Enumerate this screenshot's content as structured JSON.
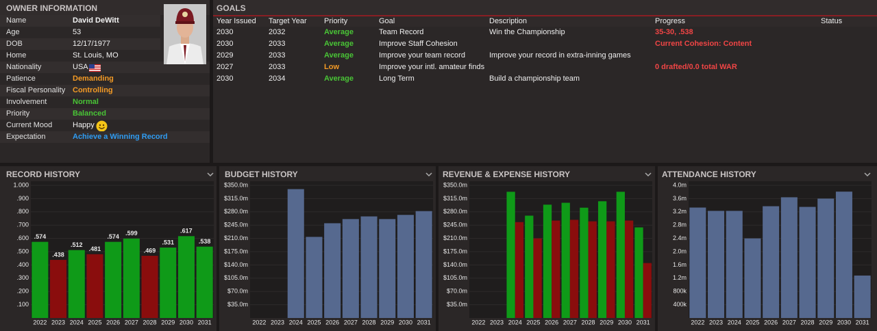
{
  "owner": {
    "title": "OWNER INFORMATION",
    "rows": [
      {
        "label": "Name",
        "value": "David DeWitt"
      },
      {
        "label": "Age",
        "value": 53
      },
      {
        "label": "DOB",
        "value": "12/17/1977"
      },
      {
        "label": "Home",
        "value": "St. Louis, MO"
      },
      {
        "label": "Nationality",
        "value": "USA"
      },
      {
        "label": "Patience",
        "value": "Demanding"
      },
      {
        "label": "Fiscal Personality",
        "value": "Controlling"
      },
      {
        "label": "Involvement",
        "value": "Normal"
      },
      {
        "label": "Priority",
        "value": "Balanced"
      },
      {
        "label": "Current Mood",
        "value": "Happy"
      },
      {
        "label": "Expectation",
        "value": "Achieve a Winning Record"
      }
    ]
  },
  "goals": {
    "title": "GOALS",
    "columns": [
      "Year Issued",
      "Target Year",
      "Priority",
      "Goal",
      "Description",
      "Progress",
      "Status"
    ],
    "rows": [
      {
        "year_issued": 2030,
        "target_year": 2032,
        "priority": "Average",
        "goal": "Team Record",
        "description": "Win the Championship",
        "progress": "35-30, .538"
      },
      {
        "year_issued": 2030,
        "target_year": 2033,
        "priority": "Average",
        "goal": "Improve Staff Cohesion",
        "progress": "Current Cohesion: Content"
      },
      {
        "year_issued": 2029,
        "target_year": 2033,
        "priority": "Average",
        "goal": "Improve your team record",
        "description": "Improve your record in extra-inning games"
      },
      {
        "year_issued": 2027,
        "target_year": 2033,
        "priority": "Low",
        "goal": "Improve your intl. amateur finds",
        "progress": "0 drafted/0.0 total WAR"
      },
      {
        "year_issued": 2030,
        "target_year": 2034,
        "priority": "Average",
        "goal": "Long Term",
        "description": "Build a championship team"
      }
    ]
  },
  "chart_data": [
    {
      "type": "bar",
      "title": "RECORD HISTORY",
      "categories": [
        "2022",
        "2023",
        "2024",
        "2025",
        "2026",
        "2027",
        "2028",
        "2029",
        "2030",
        "2031"
      ],
      "values": [
        0.574,
        0.438,
        0.512,
        0.481,
        0.574,
        0.599,
        0.469,
        0.531,
        0.617,
        0.538
      ],
      "value_labels": [
        ".574",
        ".438",
        ".512",
        ".481",
        ".574",
        ".599",
        ".469",
        ".531",
        ".617",
        ".538"
      ],
      "colors": [
        "#0f9a18",
        "#8a0d0d",
        "#0f9a18",
        "#8a0d0d",
        "#0f9a18",
        "#0f9a18",
        "#8a0d0d",
        "#0f9a18",
        "#0f9a18",
        "#0f9a18"
      ],
      "ylim": [
        0,
        1.0
      ],
      "yticks": [
        {
          "value": 0.1,
          "label": ".100"
        },
        {
          "value": 0.2,
          "label": ".200"
        },
        {
          "value": 0.3,
          "label": ".300"
        },
        {
          "value": 0.4,
          "label": ".400"
        },
        {
          "value": 0.5,
          "label": ".500"
        },
        {
          "value": 0.6,
          "label": ".600"
        },
        {
          "value": 0.7,
          "label": ".700"
        },
        {
          "value": 0.8,
          "label": ".800"
        },
        {
          "value": 0.9,
          "label": ".900"
        },
        {
          "value": 1.0,
          "label": "1.000"
        }
      ],
      "grid": true
    },
    {
      "type": "bar",
      "title": "BUDGET HISTORY",
      "categories": [
        "2022",
        "2023",
        "2024",
        "2025",
        "2026",
        "2027",
        "2028",
        "2029",
        "2030",
        "2031"
      ],
      "values": [
        null,
        null,
        340,
        214,
        250,
        261,
        268,
        261,
        272,
        282
      ],
      "color": "#56698f",
      "ylim": [
        0,
        350
      ],
      "yticks": [
        {
          "value": 35,
          "label": "$35.0m"
        },
        {
          "value": 70,
          "label": "$70.0m"
        },
        {
          "value": 105,
          "label": "$105.0m"
        },
        {
          "value": 140,
          "label": "$140.0m"
        },
        {
          "value": 175,
          "label": "$175.0m"
        },
        {
          "value": 210,
          "label": "$210.0m"
        },
        {
          "value": 245,
          "label": "$245.0m"
        },
        {
          "value": 280,
          "label": "$280.0m"
        },
        {
          "value": 315,
          "label": "$315.0m"
        },
        {
          "value": 350,
          "label": "$350.0m"
        }
      ],
      "grid": true
    },
    {
      "type": "bar",
      "title": "REVENUE & EXPENSE HISTORY",
      "categories": [
        "2022",
        "2023",
        "2024",
        "2025",
        "2026",
        "2027",
        "2028",
        "2029",
        "2030",
        "2031"
      ],
      "series": [
        {
          "color": "#0f9a18",
          "values": [
            null,
            null,
            333,
            270,
            299,
            304,
            291,
            308,
            333,
            239
          ]
        },
        {
          "color": "#8a0d0d",
          "values": [
            null,
            null,
            253,
            210,
            257,
            259,
            255,
            255,
            257,
            145
          ]
        }
      ],
      "ylim": [
        0,
        350
      ],
      "yticks": [
        {
          "value": 35,
          "label": "$35.0m"
        },
        {
          "value": 70,
          "label": "$70.0m"
        },
        {
          "value": 105,
          "label": "$105.0m"
        },
        {
          "value": 140,
          "label": "$140.0m"
        },
        {
          "value": 175,
          "label": "$175.0m"
        },
        {
          "value": 210,
          "label": "$210.0m"
        },
        {
          "value": 245,
          "label": "$245.0m"
        },
        {
          "value": 280,
          "label": "$280.0m"
        },
        {
          "value": 315,
          "label": "$315.0m"
        },
        {
          "value": 350,
          "label": "$350.0m"
        }
      ],
      "grid": true
    },
    {
      "type": "bar",
      "title": "ATTENDANCE HISTORY",
      "categories": [
        "2022",
        "2023",
        "2024",
        "2025",
        "2026",
        "2027",
        "2028",
        "2029",
        "2030",
        "2031"
      ],
      "values": [
        3330000,
        3230000,
        3230000,
        2400000,
        3370000,
        3640000,
        3350000,
        3600000,
        3810000,
        1280000
      ],
      "color": "#56698f",
      "ylim": [
        0,
        4000000
      ],
      "yticks": [
        {
          "value": 400000,
          "label": "400k"
        },
        {
          "value": 800000,
          "label": "800k"
        },
        {
          "value": 1200000,
          "label": "1.2m"
        },
        {
          "value": 1600000,
          "label": "1.6m"
        },
        {
          "value": 2000000,
          "label": "2.0m"
        },
        {
          "value": 2400000,
          "label": "2.4m"
        },
        {
          "value": 2800000,
          "label": "2.8m"
        },
        {
          "value": 3200000,
          "label": "3.2m"
        },
        {
          "value": 3600000,
          "label": "3.6m"
        },
        {
          "value": 4000000,
          "label": "4.0m"
        }
      ],
      "grid": true
    }
  ]
}
